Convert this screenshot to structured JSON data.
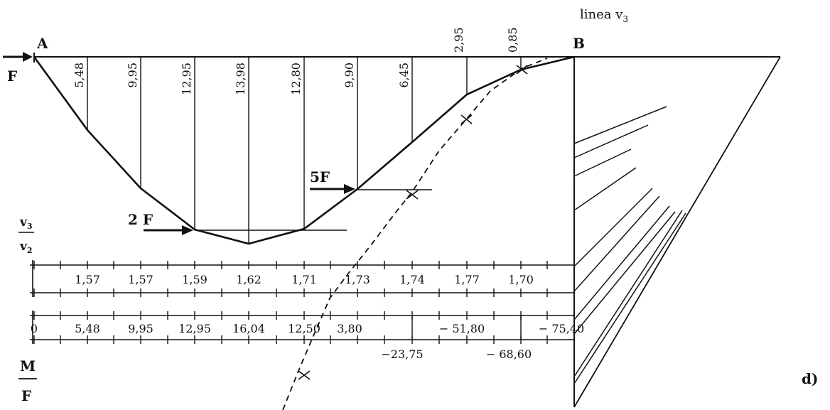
{
  "points": {
    "a": "A",
    "b": "B"
  },
  "line_label": "linea v",
  "line_label_sub": "3",
  "forces": {
    "f": "F",
    "two_f": "2 F",
    "five_f": "5F"
  },
  "ratio_label": {
    "num": "v",
    "num_sub": "3",
    "den": "v",
    "den_sub": "2"
  },
  "moment_label": {
    "num": "M",
    "den": "F"
  },
  "figure_tag": "d)",
  "ordinates": [
    "5,48",
    "9,95",
    "12,95",
    "13,98",
    "12,80",
    "9,90",
    "6,45",
    "2,95",
    "0,85"
  ],
  "ratio_values": [
    "1,57",
    "1,57",
    "1,59",
    "1,62",
    "1,71",
    "1,73",
    "1,74",
    "1,77",
    "1,70"
  ],
  "moment_upper": [
    "0",
    "5,48",
    "9,95",
    "12,95",
    "16,04",
    "12,50",
    "3,80",
    "− 51,80",
    "− 75,40"
  ],
  "moment_lower": [
    "−23,75",
    "− 68,60"
  ]
}
